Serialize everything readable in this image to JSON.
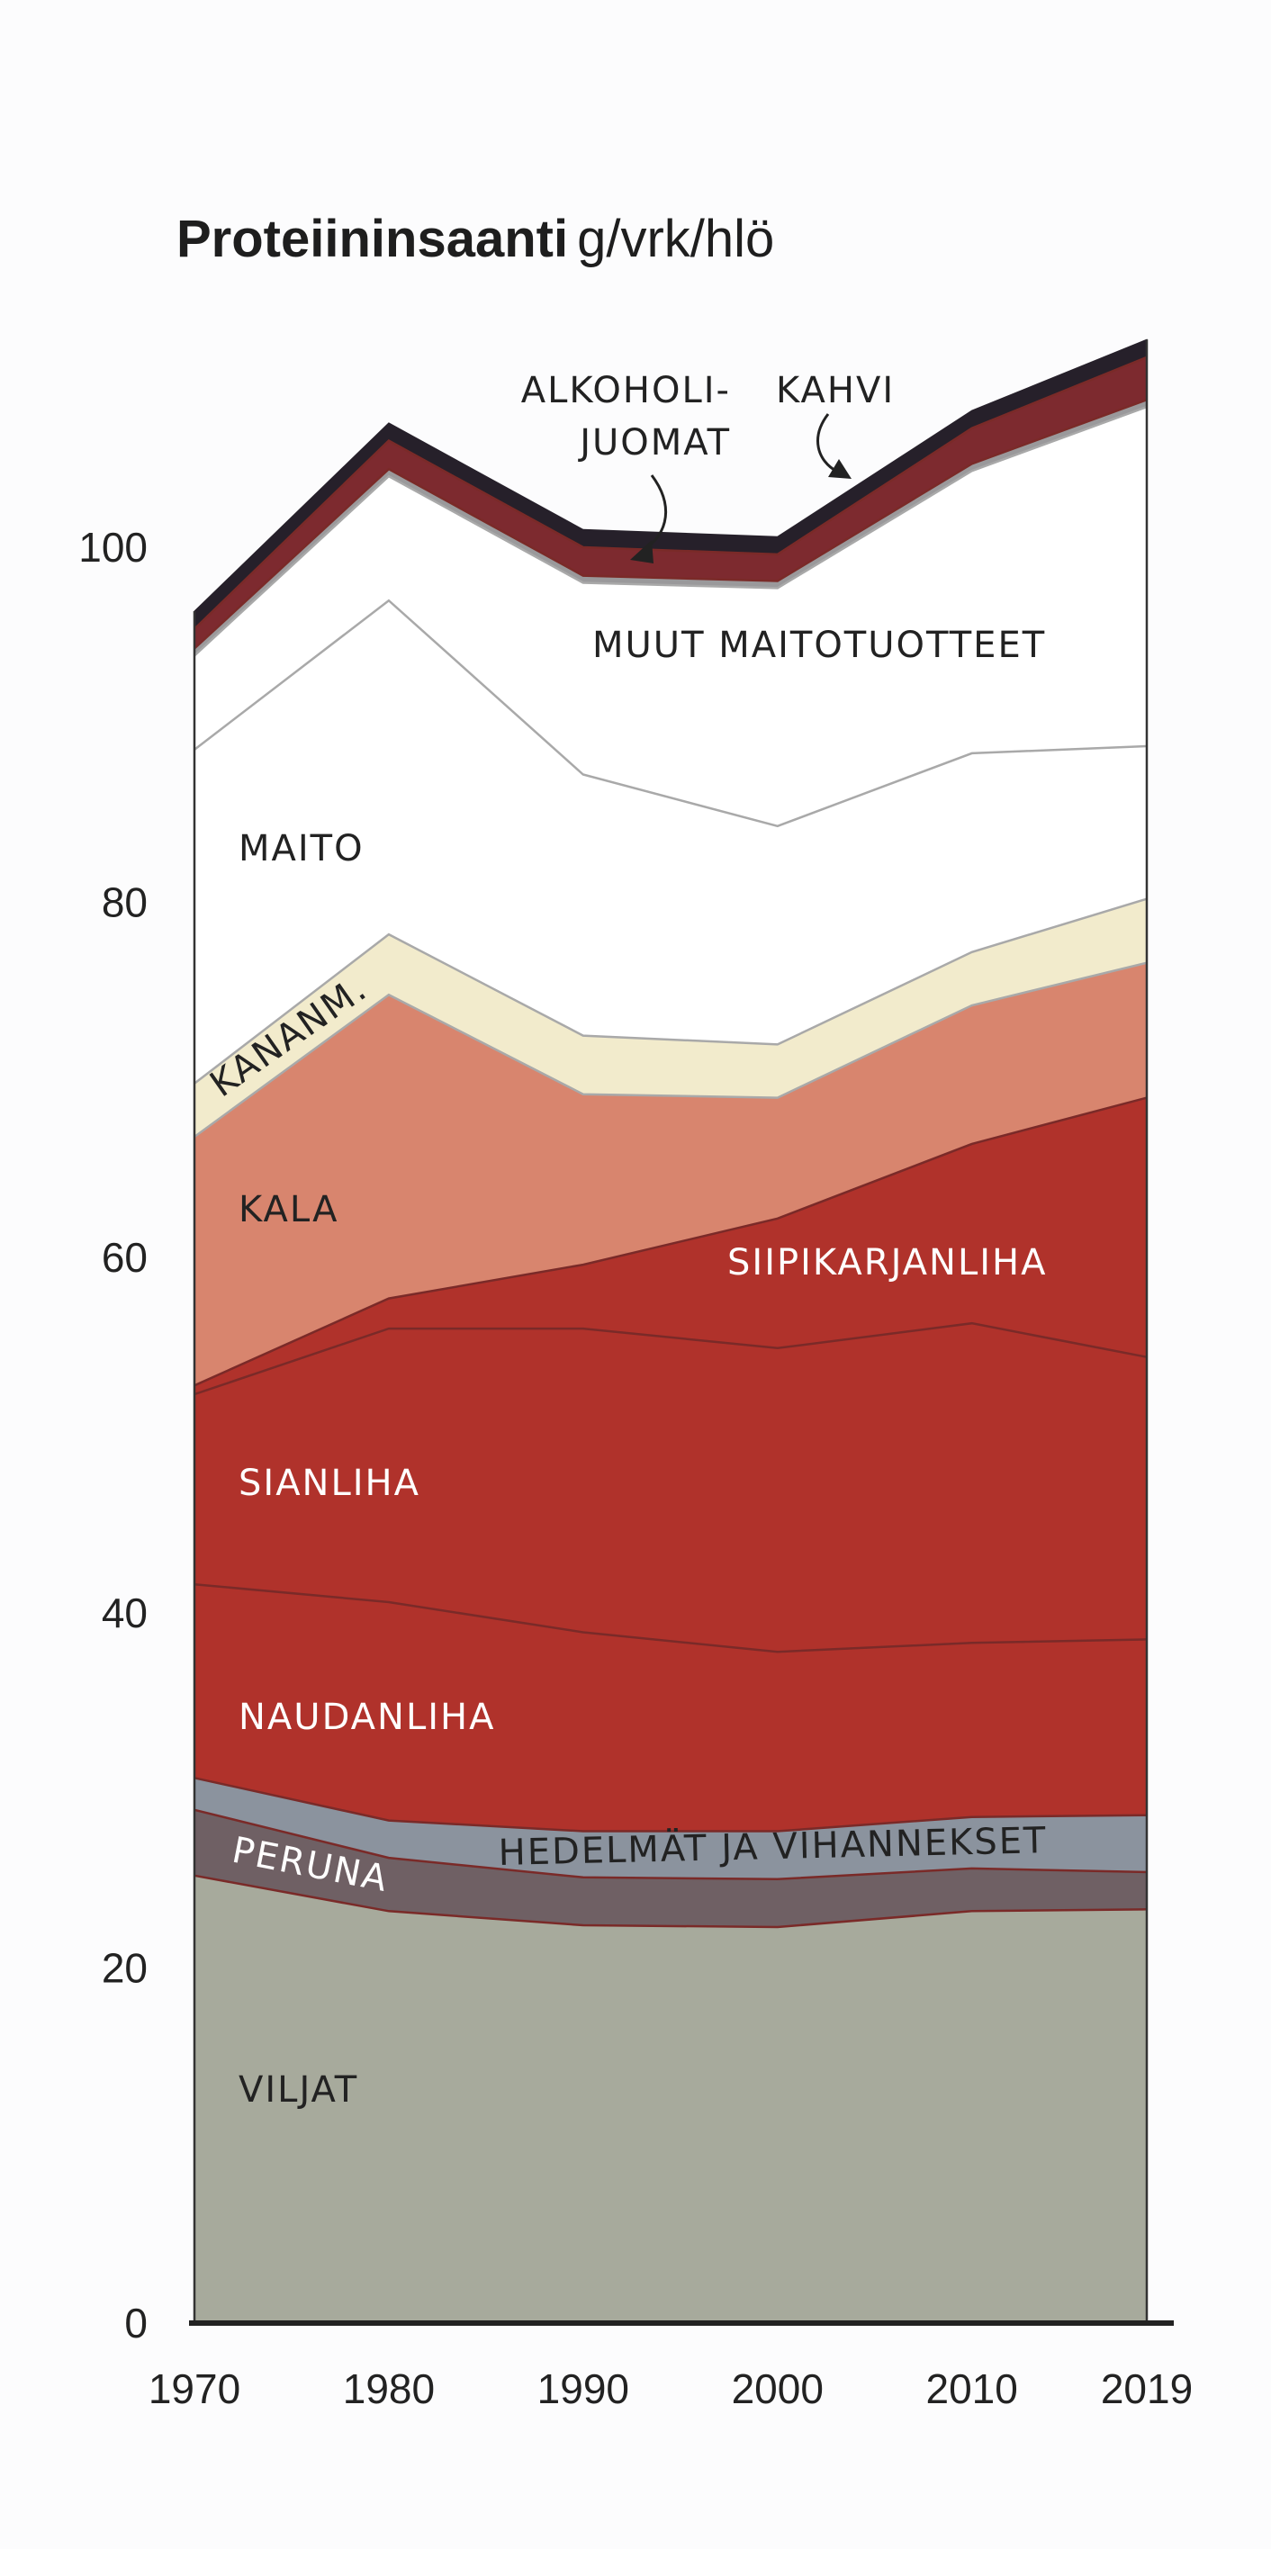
{
  "chart_data": {
    "type": "area",
    "stacked": true,
    "title_bold": "Proteiininsaanti",
    "title_unit": "g/vrk/hlö",
    "x": [
      1970,
      1980,
      1990,
      2000,
      2010,
      2019
    ],
    "x_tick_labels": [
      "1970",
      "1980",
      "1990",
      "2000",
      "2010",
      "2019"
    ],
    "ylim": [
      0,
      110
    ],
    "y_ticks": [
      0,
      20,
      40,
      60,
      80,
      100
    ],
    "y_tick_labels": [
      "0",
      "20",
      "40",
      "60",
      "80",
      "100"
    ],
    "grid": false,
    "series": [
      {
        "name": "VILJAT",
        "values": [
          25.2,
          23.2,
          22.4,
          22.3,
          23.2,
          23.3
        ],
        "color": "#a7aa9c",
        "label_color": "#222222"
      },
      {
        "name": "PERUNA",
        "values": [
          3.7,
          3.0,
          2.7,
          2.7,
          2.4,
          2.1
        ],
        "color": "#6f6064",
        "label_color": "#ffffff"
      },
      {
        "name": "HEDELMÄT JA VIHANNEKSET",
        "values": [
          1.8,
          2.1,
          2.6,
          2.7,
          2.9,
          3.2
        ],
        "color": "#8b939e",
        "label_color": "#222222"
      },
      {
        "name": "NAUDANLIHA",
        "values": [
          10.9,
          12.3,
          11.2,
          10.1,
          9.8,
          9.9
        ],
        "color": "#b0322b",
        "label_color": "#ffffff"
      },
      {
        "name": "SIANLIHA",
        "values": [
          10.7,
          15.4,
          17.1,
          17.1,
          18.0,
          15.9
        ],
        "color": "#b0322b",
        "label_color": "#ffffff"
      },
      {
        "name": "SIIPIKARJANLIHA",
        "values": [
          0.5,
          1.7,
          3.6,
          7.3,
          10.1,
          14.6
        ],
        "color": "#b0322b",
        "label_color": "#ffffff"
      },
      {
        "name": "KALA",
        "values": [
          14.0,
          17.1,
          9.6,
          6.8,
          7.8,
          7.6
        ],
        "color": "#d8856e",
        "label_color": "#222222"
      },
      {
        "name": "KANANM.",
        "values": [
          3.0,
          3.4,
          3.3,
          3.0,
          3.0,
          3.6
        ],
        "color": "#f2ebcc",
        "label_color": "#222222"
      },
      {
        "name": "MAITO",
        "values": [
          18.8,
          18.8,
          14.7,
          12.3,
          11.2,
          8.6
        ],
        "color": "#ffffff",
        "label_color": "#222222"
      },
      {
        "name": "MUUT MAITOTUOTTEET",
        "values": [
          5.3,
          7.0,
          10.8,
          13.4,
          15.9,
          19.1
        ],
        "color": "#ffffff",
        "label_color": "#222222"
      },
      {
        "name": "ALKOHOLIJUOMAT",
        "values": [
          0.4,
          0.4,
          0.4,
          0.4,
          0.4,
          0.4
        ],
        "color": "#9a999b",
        "label_color": "#222222"
      },
      {
        "name": "KAHVI",
        "values": [
          1.1,
          1.6,
          1.6,
          1.5,
          2.0,
          2.4
        ],
        "color": "#7d2a2f",
        "label_color": "#222222"
      },
      {
        "name": "",
        "values": [
          1.0,
          1.0,
          1.0,
          1.0,
          1.0,
          1.0
        ],
        "color": "#26202a",
        "label_color": "#222222"
      }
    ],
    "labels": {
      "viljat": "VILJAT",
      "peruna": "PERUNA",
      "hedelmat": "HEDELMÄT JA VIHANNEKSET",
      "naudanliha": "NAUDANLIHA",
      "sianliha": "SIANLIHA",
      "siipikarjanliha": "SIIPIKARJANLIHA",
      "kala": "KALA",
      "kananm": "KANANM.",
      "maito": "MAITO",
      "muut_maitotuotteet": "MUUT MAITOTUOTTEET",
      "alkoholi_line1": "ALKOHOLI-",
      "alkoholi_line2": "JUOMAT",
      "kahvi": "KAHVI"
    }
  }
}
